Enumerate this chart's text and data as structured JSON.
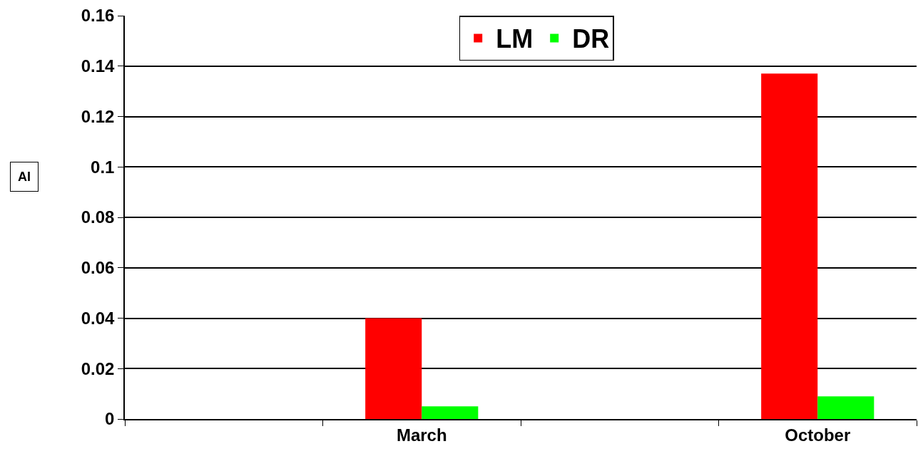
{
  "chart_data": {
    "type": "bar",
    "ylabel": "AI",
    "categories": [
      null,
      "March",
      null,
      "October"
    ],
    "series": [
      {
        "name": "LM",
        "color": "#ff0000",
        "values": [
          null,
          0.04,
          null,
          0.137
        ]
      },
      {
        "name": "DR",
        "color": "#00ff00",
        "values": [
          null,
          0.005,
          null,
          0.009
        ]
      }
    ],
    "ylim": [
      0,
      0.16
    ],
    "yticks": [
      0,
      0.02,
      0.04,
      0.06,
      0.08,
      0.1,
      0.12,
      0.14,
      0.16
    ],
    "grid": "y",
    "legend": "top"
  }
}
